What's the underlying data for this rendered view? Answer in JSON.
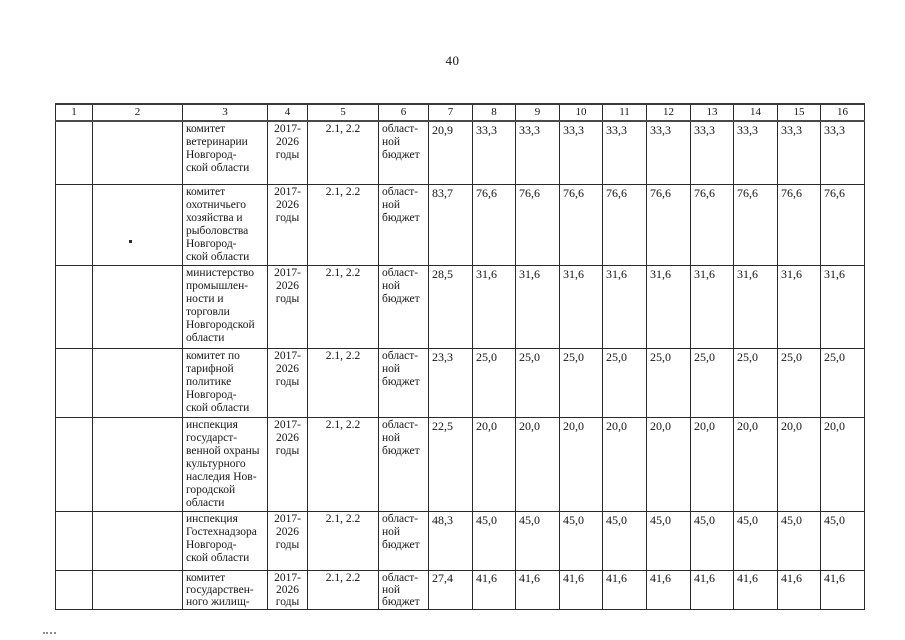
{
  "page": {
    "number": "40"
  },
  "table": {
    "header": [
      "1",
      "2",
      "3",
      "4",
      "5",
      "6",
      "7",
      "8",
      "9",
      "10",
      "11",
      "12",
      "13",
      "14",
      "15",
      "16"
    ],
    "rows": [
      {
        "col1": "",
        "col2": "",
        "name": "комитет\nветеринарии\nНовгород-\nской области",
        "years": "2017-\n2026\nгоды",
        "tasks": "2.1, 2.2",
        "source": "област-\nной\nбюджет",
        "values": [
          "20,9",
          "33,3",
          "33,3",
          "33,3",
          "33,3",
          "33,3",
          "33,3",
          "33,3",
          "33,3",
          "33,3"
        ]
      },
      {
        "col1": "",
        "col2": "",
        "name": "комитет\nохотничьего\nхозяйства и\nрыболовства\nНовгород-\nской области",
        "years": "2017-\n2026\nгоды",
        "tasks": "2.1, 2.2",
        "source": "област-\nной\nбюджет",
        "values": [
          "83,7",
          "76,6",
          "76,6",
          "76,6",
          "76,6",
          "76,6",
          "76,6",
          "76,6",
          "76,6",
          "76,6"
        ]
      },
      {
        "col1": "",
        "col2": "",
        "name": "министерство\nпромышлен-\nности и\nторговли\nНовгородской\nобласти",
        "years": "2017-\n2026\nгоды",
        "tasks": "2.1, 2.2",
        "source": "област-\nной\nбюджет",
        "values": [
          "28,5",
          "31,6",
          "31,6",
          "31,6",
          "31,6",
          "31,6",
          "31,6",
          "31,6",
          "31,6",
          "31,6"
        ]
      },
      {
        "col1": "",
        "col2": "",
        "name": "комитет по\nтарифной\nполитике\nНовгород-\nской области",
        "years": "2017-\n2026\nгоды",
        "tasks": "2.1, 2.2",
        "source": "област-\nной\nбюджет",
        "values": [
          "23,3",
          "25,0",
          "25,0",
          "25,0",
          "25,0",
          "25,0",
          "25,0",
          "25,0",
          "25,0",
          "25,0"
        ]
      },
      {
        "col1": "",
        "col2": "",
        "name": "инспекция\nгосударст-\nвенной охраны\nкультурного\nнаследия Нов-\nгородской\nобласти",
        "years": "2017-\n2026\nгоды",
        "tasks": "2.1, 2.2",
        "source": "област-\nной\nбюджет",
        "values": [
          "22,5",
          "20,0",
          "20,0",
          "20,0",
          "20,0",
          "20,0",
          "20,0",
          "20,0",
          "20,0",
          "20,0"
        ]
      },
      {
        "col1": "",
        "col2": "",
        "name": "инспекция\nГостехнадзора\nНовгород-\nской области",
        "years": "2017-\n2026\nгоды",
        "tasks": "2.1, 2.2",
        "source": "област-\nной\nбюджет",
        "values": [
          "48,3",
          "45,0",
          "45,0",
          "45,0",
          "45,0",
          "45,0",
          "45,0",
          "45,0",
          "45,0",
          "45,0"
        ]
      },
      {
        "col1": "",
        "col2": "",
        "name": "комитет\nгосударствен-\nного жилищ-",
        "years": "2017-\n2026\nгоды",
        "tasks": "2.1, 2.2",
        "source": "област-\nной\nбюджет",
        "values": [
          "27,4",
          "41,6",
          "41,6",
          "41,6",
          "41,6",
          "41,6",
          "41,6",
          "41,6",
          "41,6",
          "41,6"
        ]
      }
    ]
  }
}
